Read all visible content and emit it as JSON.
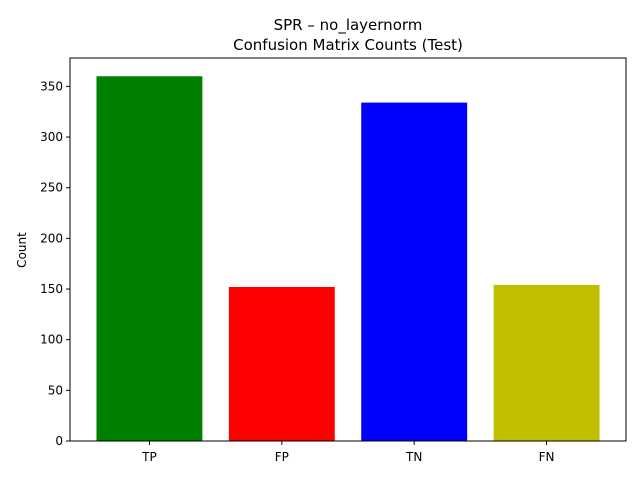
{
  "chart_data": {
    "type": "bar",
    "title": "SPR – no_layernorm",
    "subtitle": "Confusion Matrix Counts (Test)",
    "xlabel": "",
    "ylabel": "Count",
    "categories": [
      "TP",
      "FP",
      "TN",
      "FN"
    ],
    "values": [
      360,
      152,
      334,
      154
    ],
    "colors": [
      "#008000",
      "#ff0000",
      "#0000ff",
      "#bfbf00"
    ],
    "ylim": [
      0,
      378
    ],
    "yticks": [
      0,
      50,
      100,
      150,
      200,
      250,
      300,
      350
    ],
    "grid": false,
    "legend": "none"
  }
}
